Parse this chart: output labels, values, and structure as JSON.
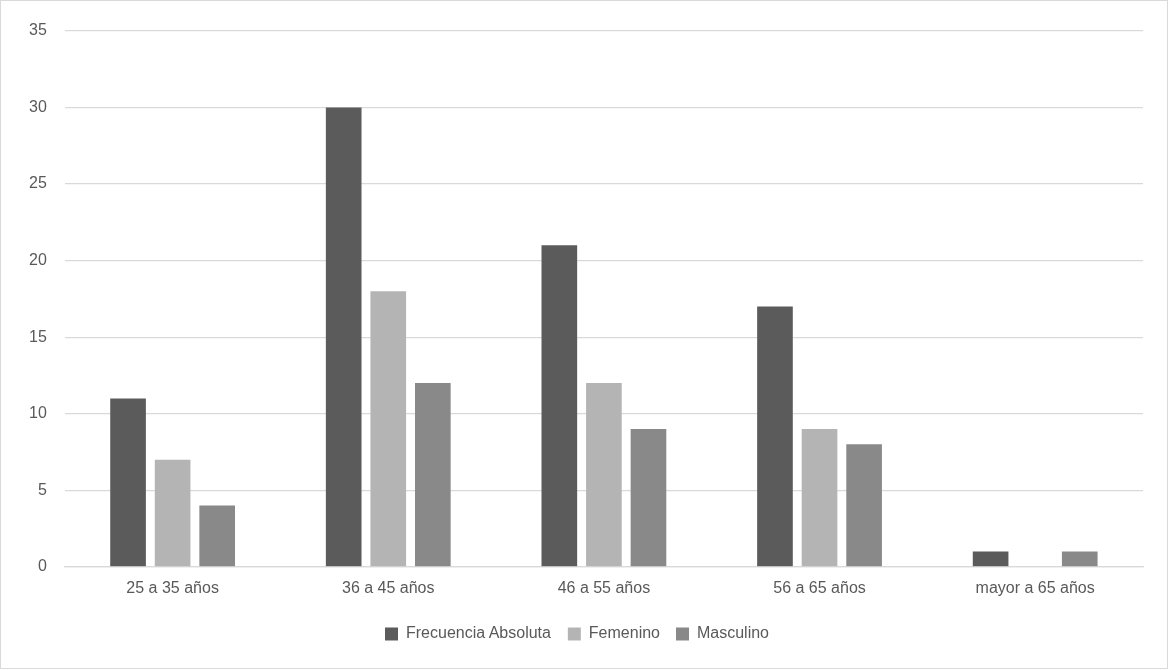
{
  "chart_data": {
    "type": "bar",
    "categories": [
      "25 a 35 años",
      "36 a 45 años",
      "46 a 55 años",
      "56 a 65 años",
      "mayor a 65 años"
    ],
    "series": [
      {
        "name": "Frecuencia Absoluta",
        "color": "#5b5b5b",
        "values": [
          11,
          30,
          21,
          17,
          1
        ]
      },
      {
        "name": "Femenino",
        "color": "#b4b4b4",
        "values": [
          7,
          18,
          12,
          9,
          0
        ]
      },
      {
        "name": "Masculino",
        "color": "#898989",
        "values": [
          4,
          12,
          9,
          8,
          1
        ]
      }
    ],
    "ylim": [
      0,
      35
    ],
    "yticks": [
      0,
      5,
      10,
      15,
      20,
      25,
      30,
      35
    ],
    "grid": "y",
    "legend": "bottom"
  }
}
